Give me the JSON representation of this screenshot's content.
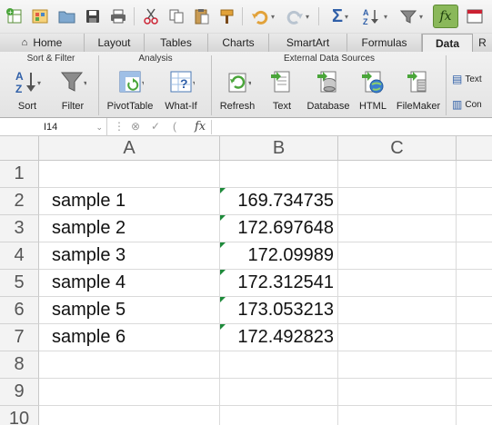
{
  "ribbon_tabs": [
    "Home",
    "Layout",
    "Tables",
    "Charts",
    "SmartArt",
    "Formulas",
    "Data",
    "R"
  ],
  "ribbon": {
    "groups": {
      "sort_filter": "Sort & Filter",
      "analysis": "Analysis",
      "external": "External Data Sources"
    },
    "buttons": {
      "sort": "Sort",
      "filter": "Filter",
      "pivottable": "PivotTable",
      "whatif": "What-If",
      "refresh": "Refresh",
      "text": "Text",
      "database": "Database",
      "html": "HTML",
      "filemaker": "FileMaker"
    },
    "side": {
      "text": "Text",
      "connections": "Con"
    }
  },
  "formula_bar": {
    "cell_ref": "I14",
    "fx_label": "fx",
    "formula": ""
  },
  "columns": [
    "A",
    "B",
    "C"
  ],
  "rows": [
    {
      "n": "1",
      "a": "",
      "b": ""
    },
    {
      "n": "2",
      "a": "sample 1",
      "b": "169.734735"
    },
    {
      "n": "3",
      "a": "sample 2",
      "b": "172.697648"
    },
    {
      "n": "4",
      "a": "sample 3",
      "b": "172.09989"
    },
    {
      "n": "5",
      "a": "sample 4",
      "b": "172.312541"
    },
    {
      "n": "6",
      "a": "sample 5",
      "b": "173.053213"
    },
    {
      "n": "7",
      "a": "sample 6",
      "b": "172.492823"
    },
    {
      "n": "8",
      "a": "",
      "b": ""
    },
    {
      "n": "9",
      "a": "",
      "b": ""
    },
    {
      "n": "10",
      "a": "",
      "b": ""
    }
  ],
  "colors": {
    "active_tab_bg": "#eeeeee",
    "error_triangle": "#1d8a3a",
    "fx_active": "#7fae4d"
  }
}
